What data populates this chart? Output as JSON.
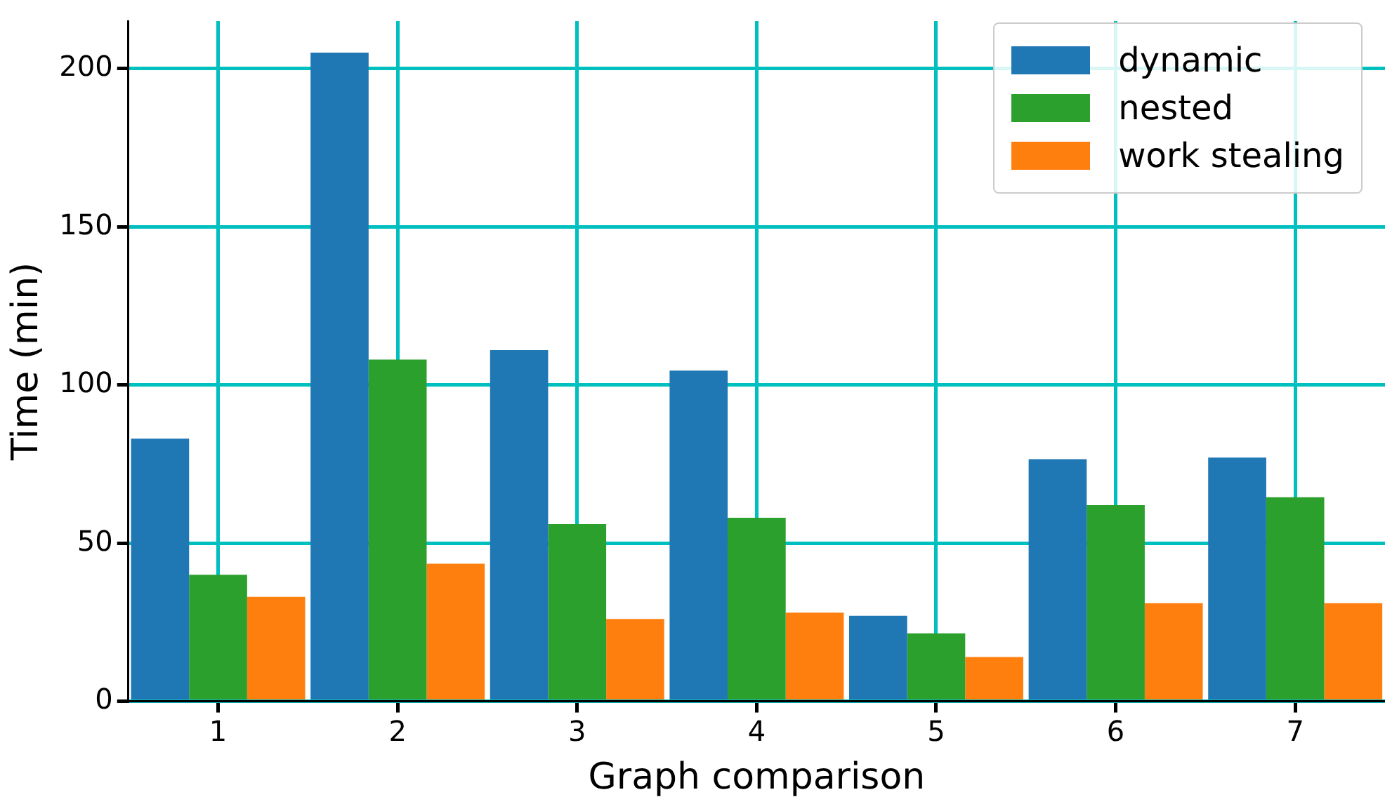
{
  "chart_data": {
    "type": "bar",
    "xlabel": "Graph comparison",
    "ylabel": "Time (min)",
    "categories": [
      "1",
      "2",
      "3",
      "4",
      "5",
      "6",
      "7"
    ],
    "series": [
      {
        "name": "dynamic",
        "color": "#1f77b4",
        "values": [
          83,
          205,
          111,
          104.5,
          27,
          76.5,
          77
        ]
      },
      {
        "name": "nested",
        "color": "#2ca02c",
        "values": [
          40,
          108,
          56,
          58,
          21.5,
          62,
          64.5
        ]
      },
      {
        "name": "work stealing",
        "color": "#ff7f0e",
        "values": [
          33,
          43.5,
          26,
          28,
          14,
          31,
          31
        ]
      }
    ],
    "ylim": [
      0,
      215
    ],
    "yticks": [
      0,
      50,
      100,
      150,
      200
    ],
    "grid": true,
    "legend": "top right"
  }
}
